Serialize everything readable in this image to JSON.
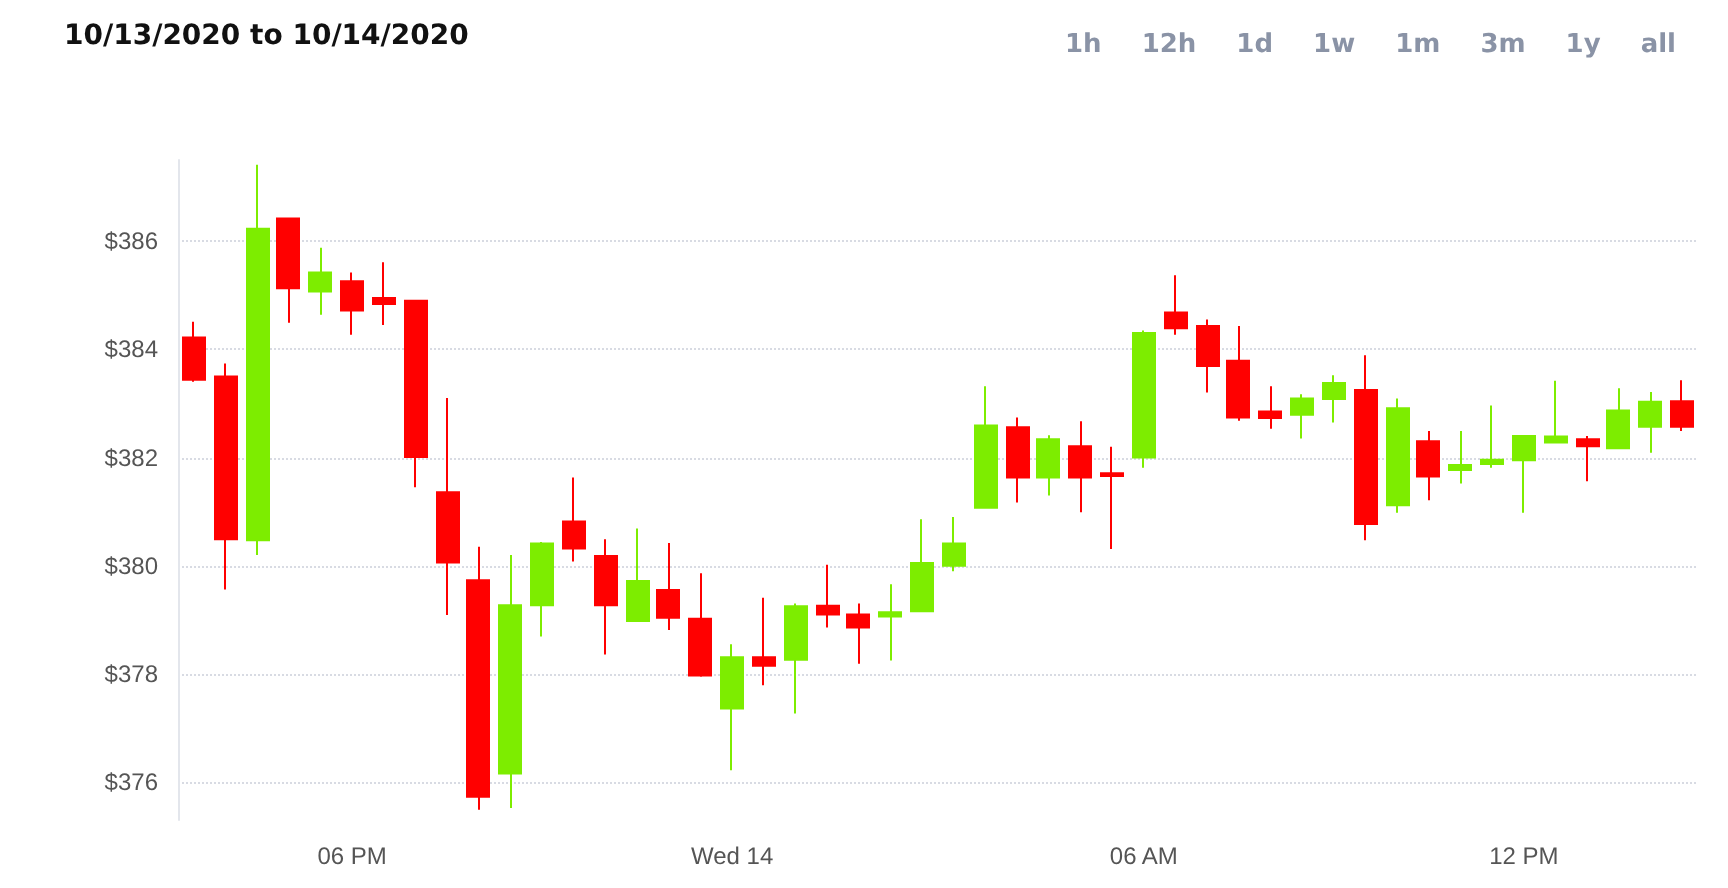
{
  "chart_data": {
    "type": "candlestick",
    "title": "10/13/2020 to 10/14/2020",
    "annotations": [
      "1h",
      "12h",
      "1d",
      "1w",
      "1m",
      "3m",
      "1y",
      "all"
    ],
    "categories": [
      null,
      null,
      null,
      null,
      null,
      "06 PM",
      null,
      null,
      null,
      null,
      null,
      null,
      null,
      null,
      null,
      null,
      null,
      "Wed 14",
      null,
      null,
      null,
      null,
      null,
      null,
      null,
      null,
      null,
      null,
      null,
      null,
      "06 AM",
      null,
      null,
      null,
      null,
      null,
      null,
      null,
      null,
      null,
      null,
      null,
      "12 PM",
      null,
      null,
      null,
      null,
      null
    ],
    "ohlc": [
      [
        384.22,
        384.51,
        383.4,
        383.44
      ],
      [
        383.5,
        383.74,
        379.56,
        380.49
      ],
      [
        380.47,
        387.41,
        380.2,
        386.23
      ],
      [
        386.42,
        386.42,
        384.49,
        385.13
      ],
      [
        385.07,
        385.88,
        384.64,
        385.42
      ],
      [
        385.26,
        385.42,
        384.27,
        384.72
      ],
      [
        384.95,
        385.61,
        384.45,
        384.84
      ],
      [
        384.9,
        384.9,
        381.45,
        382.01
      ],
      [
        381.36,
        383.1,
        379.09,
        380.06
      ],
      [
        379.73,
        380.35,
        375.49,
        375.73
      ],
      [
        376.16,
        380.2,
        375.52,
        379.27
      ],
      [
        379.27,
        380.44,
        378.69,
        380.41
      ],
      [
        380.82,
        381.63,
        380.08,
        380.32
      ],
      [
        380.18,
        380.49,
        378.36,
        379.27
      ],
      [
        378.98,
        380.69,
        378.98,
        379.72
      ],
      [
        379.55,
        380.42,
        378.81,
        379.04
      ],
      [
        379.02,
        379.86,
        377.95,
        377.97
      ],
      [
        377.36,
        378.55,
        376.22,
        378.31
      ],
      [
        378.31,
        379.41,
        377.79,
        378.15
      ],
      [
        378.26,
        379.3,
        377.27,
        379.25
      ],
      [
        379.26,
        380.02,
        378.86,
        379.1
      ],
      [
        379.1,
        379.3,
        378.19,
        378.86
      ],
      [
        379.06,
        379.66,
        378.25,
        379.14
      ],
      [
        379.16,
        380.86,
        379.16,
        380.05
      ],
      [
        380.0,
        380.9,
        379.9,
        380.41
      ],
      [
        381.07,
        383.32,
        381.07,
        382.59
      ],
      [
        382.56,
        382.74,
        381.17,
        381.63
      ],
      [
        381.63,
        382.41,
        381.3,
        382.34
      ],
      [
        382.21,
        382.67,
        380.99,
        381.63
      ],
      [
        381.71,
        382.2,
        380.31,
        381.66
      ],
      [
        382.0,
        384.35,
        381.81,
        384.3
      ],
      [
        384.68,
        385.37,
        384.27,
        384.39
      ],
      [
        384.43,
        384.55,
        383.2,
        383.69
      ],
      [
        383.79,
        384.43,
        382.68,
        382.74
      ],
      [
        382.85,
        383.32,
        382.53,
        382.73
      ],
      [
        382.79,
        383.17,
        382.35,
        383.09
      ],
      [
        383.08,
        383.52,
        382.65,
        383.38
      ],
      [
        383.25,
        383.89,
        380.47,
        380.77
      ],
      [
        381.12,
        383.09,
        380.98,
        382.91
      ],
      [
        382.3,
        382.49,
        381.21,
        381.65
      ],
      [
        381.77,
        382.49,
        381.52,
        381.86
      ],
      [
        381.88,
        382.96,
        381.81,
        381.96
      ],
      [
        381.95,
        382.4,
        380.98,
        382.4
      ],
      [
        382.28,
        383.42,
        382.28,
        382.39
      ],
      [
        382.34,
        382.4,
        381.56,
        382.21
      ],
      [
        382.17,
        383.28,
        382.17,
        382.87
      ],
      [
        382.57,
        383.21,
        382.09,
        383.03
      ],
      [
        383.04,
        383.43,
        382.49,
        382.57
      ]
    ],
    "colors": [
      "#ff0000",
      "#ff0000",
      "#7ded00",
      "#ff0000",
      "#7ded00",
      "#ff0000",
      "#ff0000",
      "#ff0000",
      "#ff0000",
      "#ff0000",
      "#7ded00",
      "#7ded00",
      "#ff0000",
      "#ff0000",
      "#7ded00",
      "#ff0000",
      "#ff0000",
      "#7ded00",
      "#ff0000",
      "#7ded00",
      "#ff0000",
      "#ff0000",
      "#7ded00",
      "#7ded00",
      "#7ded00",
      "#7ded00",
      "#ff0000",
      "#7ded00",
      "#ff0000",
      "#ff0000",
      "#7ded00",
      "#ff0000",
      "#ff0000",
      "#ff0000",
      "#ff0000",
      "#7ded00",
      "#7ded00",
      "#ff0000",
      "#7ded00",
      "#ff0000",
      "#7ded00",
      "#7ded00",
      "#7ded00",
      "#7ded00",
      "#ff0000",
      "#7ded00",
      "#7ded00",
      "#ff0000"
    ],
    "ylim": [
      375.3,
      387.5
    ],
    "yticks": [
      {
        "value": 376,
        "label": "$376"
      },
      {
        "value": 378,
        "label": "$378"
      },
      {
        "value": 380,
        "label": "$380"
      },
      {
        "value": 382,
        "label": "$382"
      },
      {
        "value": 384,
        "label": "$384"
      },
      {
        "value": 386,
        "label": "$386"
      }
    ],
    "grid": "y"
  }
}
